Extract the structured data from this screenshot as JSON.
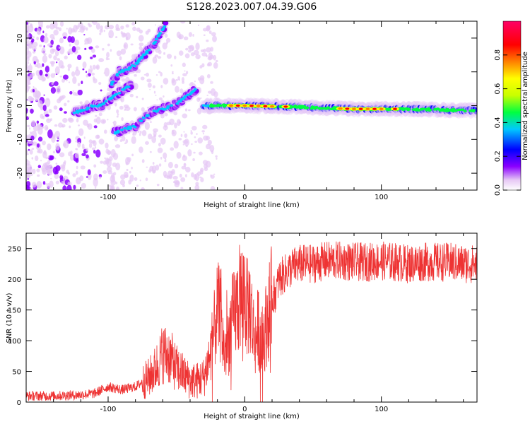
{
  "figure": {
    "title": "S128.2023.007.04.39.G06"
  },
  "chart_data": [
    {
      "type": "heatmap",
      "title": "S128.2023.007.04.39.G06",
      "xlabel": "Height of straight line (km)",
      "ylabel": "Frequency (Hz)",
      "xlim": [
        -160,
        170
      ],
      "ylim": [
        -25,
        25
      ],
      "x_ticks": [
        -100,
        0,
        100
      ],
      "y_ticks": [
        -20,
        -10,
        0,
        10,
        20
      ],
      "colorbar": {
        "label": "Normalized spectral amplitude",
        "range": [
          0.0,
          1.0
        ],
        "ticks": [
          "0.0",
          "0.2",
          "0.4",
          "0.6",
          "0.8"
        ],
        "colormap": [
          "#ffffff",
          "#e6c8f5",
          "#8a00ff",
          "#0000ff",
          "#00c8ff",
          "#00ff40",
          "#c8ff00",
          "#ffff00",
          "#ff8000",
          "#ff0000",
          "#ff0066"
        ]
      },
      "ridges": [
        {
          "x": [
            -125,
            -118,
            -112,
            -105,
            -100,
            -95,
            -90,
            -86,
            -82
          ],
          "y": [
            -2,
            -1.5,
            0,
            0,
            1.5,
            3,
            4.5,
            5.5,
            6
          ]
        },
        {
          "x": [
            -98,
            -92,
            -85,
            -80,
            -74,
            -70,
            -66,
            -62,
            -58
          ],
          "y": [
            6,
            10,
            11,
            12,
            15,
            16.5,
            18.5,
            21.5,
            24
          ]
        },
        {
          "x": [
            -95,
            -88,
            -80,
            -75,
            -68,
            -60,
            -52,
            -45,
            -40,
            -35
          ],
          "y": [
            -8,
            -7,
            -6,
            -4,
            -2,
            -1,
            0,
            2,
            3.5,
            5
          ]
        },
        {
          "x": [
            -30,
            0,
            40,
            80,
            120,
            170
          ],
          "y": [
            0,
            0,
            -0.4,
            -1,
            -1,
            -1.5
          ]
        }
      ]
    },
    {
      "type": "line",
      "xlabel": "Height of straight line (km)",
      "ylabel": "SNR (10 * v/v)",
      "xlim": [
        -160,
        170
      ],
      "ylim": [
        0,
        275
      ],
      "x_ticks": [
        -100,
        0,
        100
      ],
      "y_ticks": [
        0,
        50,
        100,
        150,
        200,
        250
      ],
      "color": "#ee3333",
      "series": [
        {
          "x": [
            -160,
            -140,
            -120,
            -110,
            -100,
            -90,
            -80,
            -70,
            -65,
            -60,
            -55,
            -50,
            -45,
            -40,
            -35,
            -30,
            -25,
            -22,
            -20,
            -18,
            -15,
            -12,
            -10,
            -8,
            -5,
            -2,
            0,
            2,
            4,
            6,
            8,
            10,
            12,
            15,
            18,
            20,
            23,
            25,
            30,
            35,
            40,
            50,
            60,
            70,
            80,
            90,
            100,
            110,
            120,
            130,
            140,
            150,
            160,
            170
          ],
          "y": [
            10,
            10,
            12,
            14,
            25,
            20,
            25,
            40,
            55,
            80,
            75,
            55,
            45,
            35,
            35,
            40,
            80,
            120,
            150,
            140,
            80,
            100,
            130,
            140,
            160,
            175,
            180,
            150,
            160,
            120,
            100,
            125,
            90,
            120,
            150,
            170,
            180,
            200,
            210,
            220,
            225,
            225,
            230,
            230,
            228,
            228,
            230,
            228,
            225,
            228,
            228,
            228,
            225,
            225
          ]
        }
      ]
    }
  ]
}
